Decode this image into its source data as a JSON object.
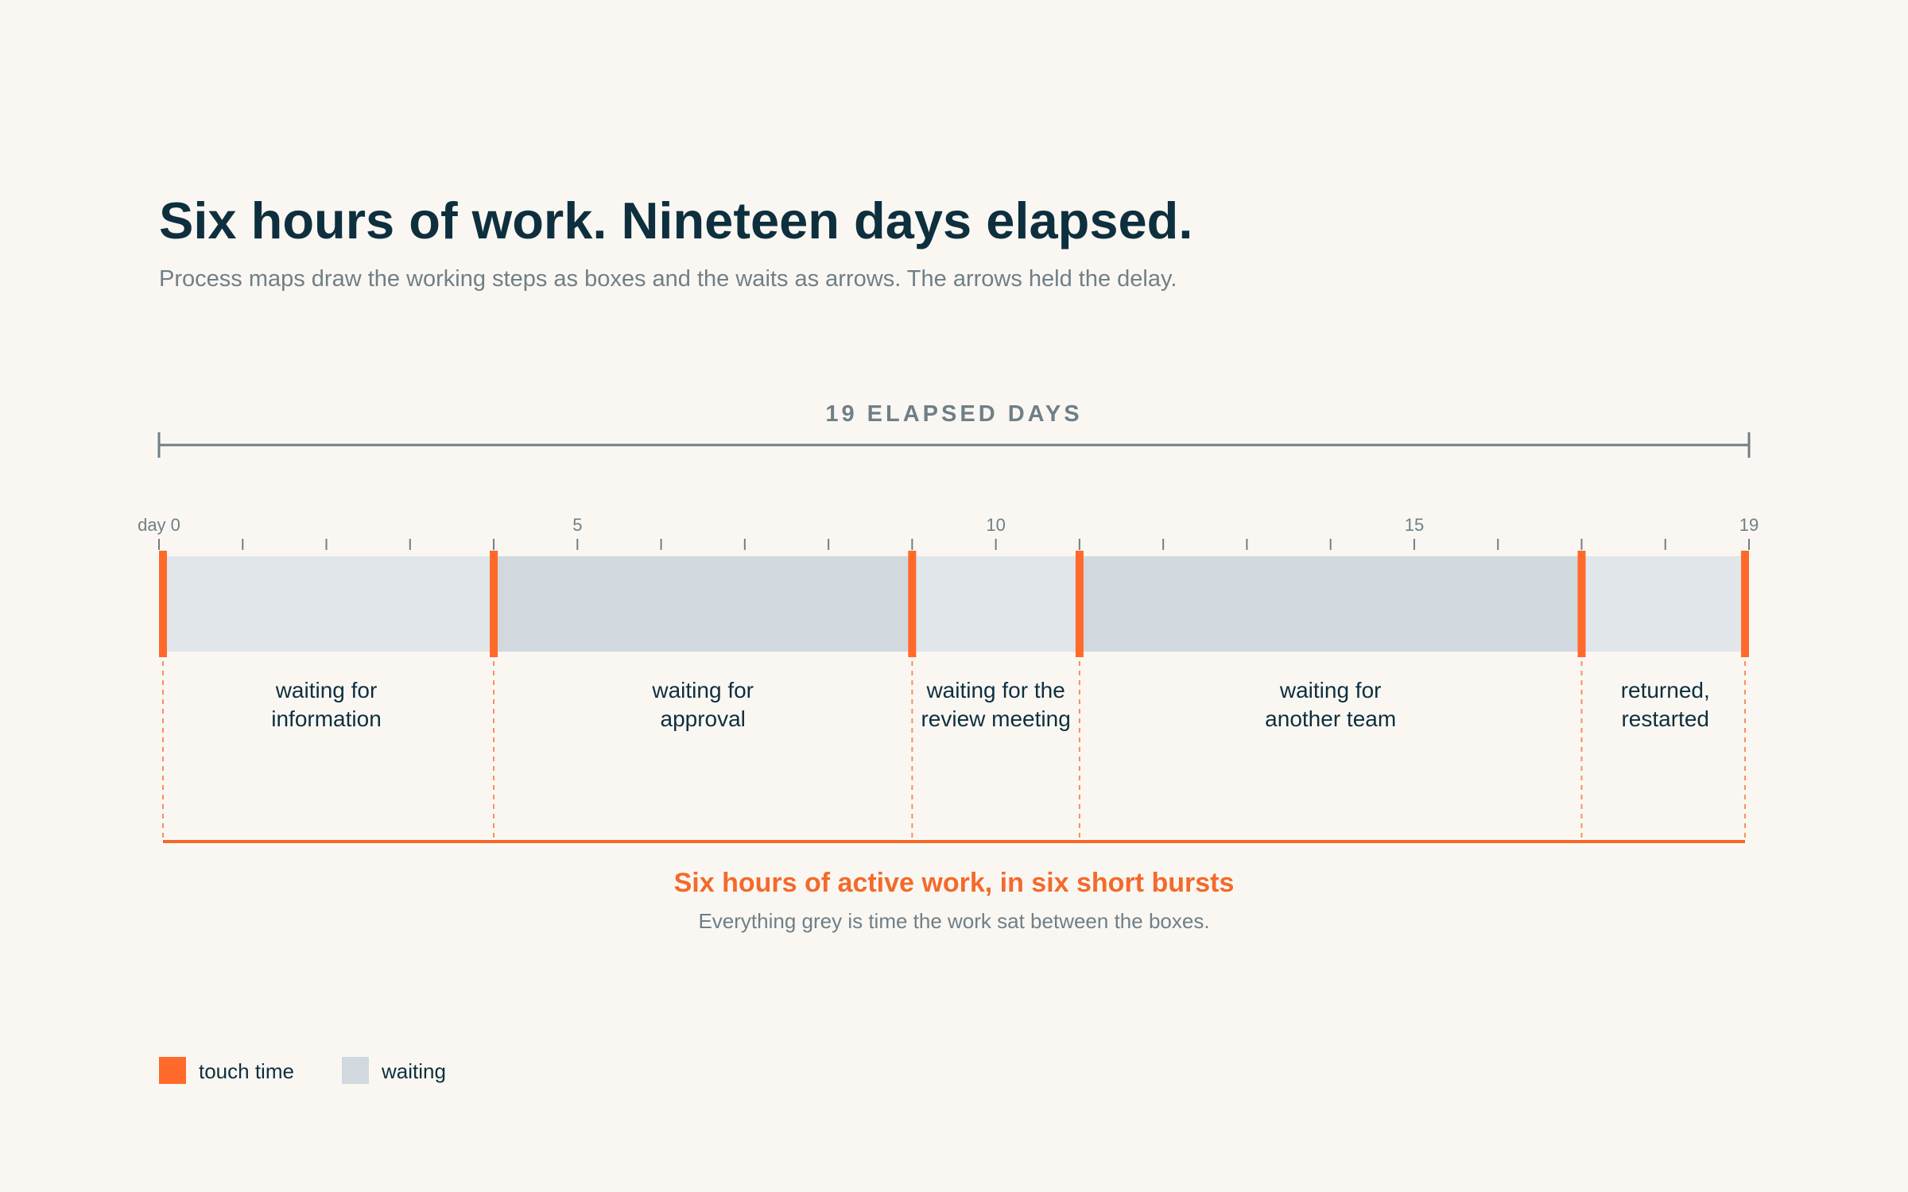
{
  "title": "Six hours of work. Nineteen days elapsed.",
  "subtitle": "Process maps draw the working steps as boxes and the waits as arrows. The arrows held the delay.",
  "span_label": "19 ELAPSED DAYS",
  "summary": {
    "headline": "Six hours of active work, in six short bursts",
    "note": "Everything grey is time the work sat between the boxes."
  },
  "legend": [
    {
      "label": "touch time",
      "color": "#FF6A2B"
    },
    {
      "label": "waiting",
      "color": "#D1D8DE"
    }
  ],
  "colors": {
    "touch": "#FF6A2B",
    "wait_light": "#E0E6EA",
    "wait_dark": "#D1D8DE",
    "axis": "#6F7F87",
    "text": "#0E2F3E"
  },
  "chart_data": {
    "type": "bar",
    "x_unit": "day",
    "xlim": [
      0,
      19
    ],
    "ticks": [
      0,
      1,
      2,
      3,
      4,
      5,
      6,
      7,
      8,
      9,
      10,
      11,
      12,
      13,
      14,
      15,
      16,
      17,
      18,
      19
    ],
    "tick_labels": [
      {
        "day": 0,
        "label": "day 0"
      },
      {
        "day": 5,
        "label": "5"
      },
      {
        "day": 10,
        "label": "10"
      },
      {
        "day": 15,
        "label": "15"
      },
      {
        "day": 19,
        "label": "19"
      }
    ],
    "wait_segments": [
      {
        "start": 0,
        "end": 4,
        "label_lines": [
          "waiting for",
          "information"
        ],
        "shade": "light"
      },
      {
        "start": 4,
        "end": 9,
        "label_lines": [
          "waiting for",
          "approval"
        ],
        "shade": "dark"
      },
      {
        "start": 9,
        "end": 11,
        "label_lines": [
          "waiting for the",
          "review meeting"
        ],
        "shade": "light"
      },
      {
        "start": 11,
        "end": 17,
        "label_lines": [
          "waiting for",
          "another team"
        ],
        "shade": "dark"
      },
      {
        "start": 17,
        "end": 19,
        "label_lines": [
          "returned,",
          "restarted"
        ],
        "shade": "light"
      }
    ],
    "touch_points": [
      0,
      4,
      9,
      11,
      17,
      19
    ],
    "total_active_hours": 6,
    "total_elapsed_days": 19
  }
}
